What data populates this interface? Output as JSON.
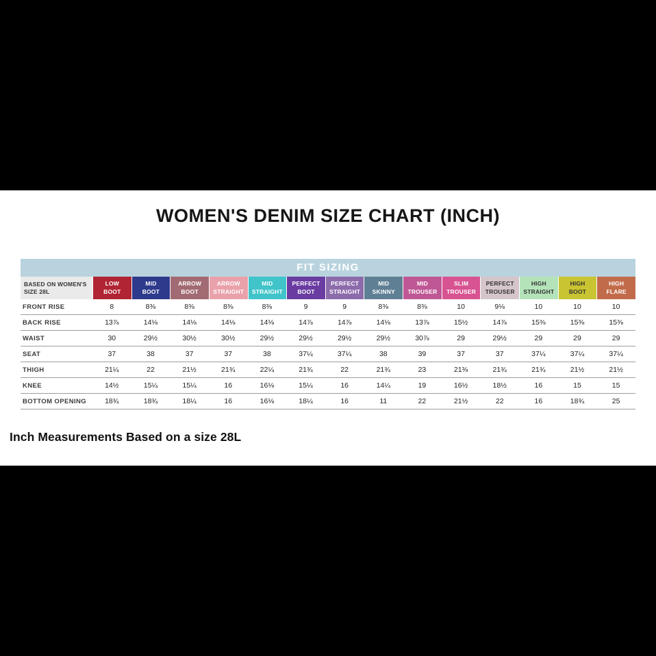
{
  "page": {
    "title": "WOMEN'S DENIM SIZE CHART (INCH)",
    "footer_note": "Inch Measurements Based on a size 28L"
  },
  "fit_band": {
    "label": "FIT SIZING",
    "bg": "#b9d3de"
  },
  "corner_label": "BASED ON WOMEN'S\nSIZE 28L",
  "chart_data": {
    "type": "table",
    "title": "WOMEN'S DENIM SIZE CHART (INCH)",
    "subtitle": "FIT SIZING",
    "basis": "BASED ON WOMEN'S SIZE 28L",
    "columns": [
      {
        "name": "LOW\nBOOT",
        "color": "#b02433",
        "text_color": "#ffffff"
      },
      {
        "name": "MID\nBOOT",
        "color": "#2e3a8c",
        "text_color": "#ffffff"
      },
      {
        "name": "ARROW\nBOOT",
        "color": "#a26a72",
        "text_color": "#ffffff"
      },
      {
        "name": "ARROW\nSTRAIGHT",
        "color": "#e9a1aa",
        "text_color": "#ffffff"
      },
      {
        "name": "MID\nSTRAIGHT",
        "color": "#40c4ca",
        "text_color": "#ffffff"
      },
      {
        "name": "PERFECT\nBOOT",
        "color": "#6a3ca1",
        "text_color": "#ffffff"
      },
      {
        "name": "PERFECT\nSTRAIGHT",
        "color": "#8c6bab",
        "text_color": "#ffffff"
      },
      {
        "name": "MID\nSKINNY",
        "color": "#5f7f94",
        "text_color": "#ffffff"
      },
      {
        "name": "MID\nTROUSER",
        "color": "#bf5795",
        "text_color": "#ffffff"
      },
      {
        "name": "SLIM\nTROUSER",
        "color": "#d75391",
        "text_color": "#ffffff"
      },
      {
        "name": "PERFECT\nTROUSER",
        "color": "#d5c6cb",
        "text_color": "#333333"
      },
      {
        "name": "HIGH\nSTRAIGHT",
        "color": "#b4e3ba",
        "text_color": "#333333"
      },
      {
        "name": "HIGH\nBOOT",
        "color": "#c9c431",
        "text_color": "#333333"
      },
      {
        "name": "HIGH\nFLARE",
        "color": "#c26b4a",
        "text_color": "#ffffff"
      }
    ],
    "rows": [
      {
        "label": "FRONT RISE",
        "values": [
          "8",
          "8⅜",
          "8⅜",
          "8⅜",
          "8⅜",
          "9",
          "9",
          "8⅜",
          "8⅜",
          "10",
          "9⅛",
          "10",
          "10",
          "10"
        ]
      },
      {
        "label": "BACK RISE",
        "values": [
          "13⅞",
          "14⅛",
          "14⅛",
          "14⅛",
          "14⅛",
          "14⅞",
          "14⅞",
          "14⅛",
          "13⅞",
          "15½",
          "14⅞",
          "15⅜",
          "15⅜",
          "15⅜"
        ]
      },
      {
        "label": "WAIST",
        "values": [
          "30",
          "29½",
          "30½",
          "30½",
          "29½",
          "29½",
          "29½",
          "29½",
          "30⅞",
          "29",
          "29½",
          "29",
          "29",
          "29"
        ]
      },
      {
        "label": "SEAT",
        "values": [
          "37",
          "38",
          "37",
          "37",
          "38",
          "37¼",
          "37¼",
          "38",
          "39",
          "37",
          "37",
          "37¼",
          "37¼",
          "37¼"
        ]
      },
      {
        "label": "THIGH",
        "values": [
          "21¼",
          "22",
          "21½",
          "21¾",
          "22¼",
          "21¾",
          "22",
          "21¾",
          "23",
          "21⅜",
          "21¾",
          "21¾",
          "21½",
          "21½"
        ]
      },
      {
        "label": "KNEE",
        "values": [
          "14½",
          "15¼",
          "15¼",
          "16",
          "16⅛",
          "15¼",
          "16",
          "14¼",
          "19",
          "16½",
          "18½",
          "16",
          "15",
          "15"
        ]
      },
      {
        "label": "BOTTOM OPENING",
        "values": [
          "18¾",
          "18¾",
          "18¼",
          "16",
          "16⅛",
          "18¼",
          "16",
          "11",
          "22",
          "21½",
          "22",
          "16",
          "18¾",
          "25"
        ]
      }
    ]
  }
}
